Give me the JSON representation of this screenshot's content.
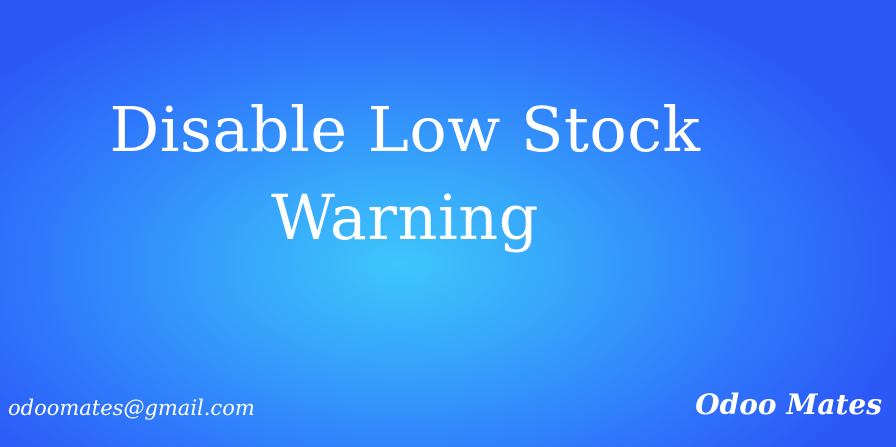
{
  "title": {
    "line1": "Disable Low Stock",
    "line2": "Warning"
  },
  "footer": {
    "email": "odoomates@gmail.com",
    "brand": "Odoo Mates"
  },
  "colors": {
    "background_center": "#3ec6fb",
    "background_edge": "#2c58f6",
    "text": "#ffffff"
  }
}
